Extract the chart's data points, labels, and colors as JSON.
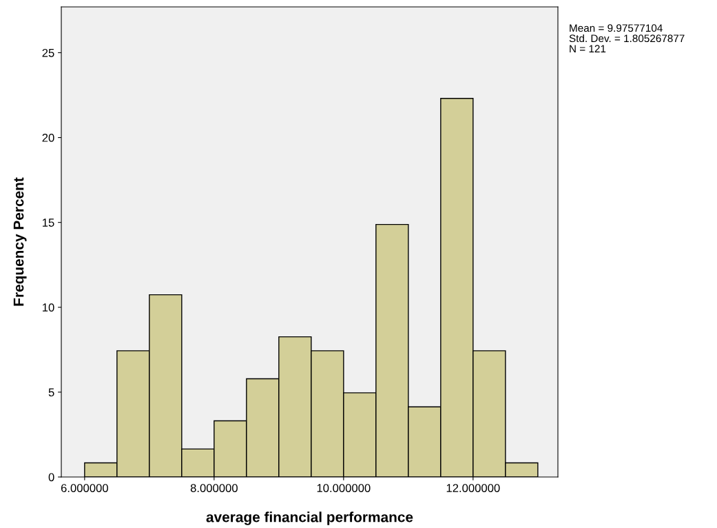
{
  "chart_data": {
    "type": "histogram",
    "xlabel": "average financial performance",
    "ylabel": "Frequency Percent",
    "bins": [
      6.0,
      6.5,
      7.0,
      7.5,
      8.0,
      8.5,
      9.0,
      9.5,
      10.0,
      10.5,
      11.0,
      11.5,
      12.0,
      12.5,
      13.0
    ],
    "values": [
      0.83,
      7.44,
      10.74,
      1.65,
      3.31,
      5.79,
      8.26,
      7.44,
      4.96,
      14.88,
      4.13,
      22.31,
      7.44,
      0.83
    ],
    "color": "#d3cf98",
    "xlim": [
      5.64,
      13.31
    ],
    "ylim": [
      0,
      27.7
    ],
    "xticks": [
      {
        "value": 6,
        "label": "6.000000"
      },
      {
        "value": 8,
        "label": "8.000000"
      },
      {
        "value": 10,
        "label": "10.000000"
      },
      {
        "value": 12,
        "label": "12.000000"
      }
    ],
    "yticks": [
      0,
      5,
      10,
      15,
      20,
      25
    ],
    "annotations": [
      "Mean = 9.97577104",
      "Std. Dev. = 1.805267877",
      "N = 121"
    ],
    "grid": false,
    "legend": false
  }
}
